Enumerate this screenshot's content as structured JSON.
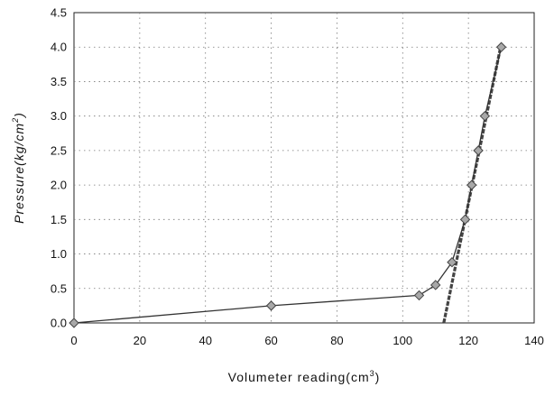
{
  "chart_data": {
    "type": "scatter",
    "xlabel": "Volumeter reading(cm",
    "xlabel_sup": "3",
    "xlabel_end": ")",
    "ylabel": "Pressure(kg/cm",
    "ylabel_sup": "2",
    "ylabel_end": ")",
    "xlim": [
      0,
      140
    ],
    "ylim": [
      0,
      4.5
    ],
    "xticks": [
      "0",
      "20",
      "40",
      "60",
      "80",
      "100",
      "120",
      "140"
    ],
    "yticks": [
      "0.0",
      "0.5",
      "1.0",
      "1.5",
      "2.0",
      "2.5",
      "3.0",
      "3.5",
      "4.0",
      "4.5"
    ],
    "grid": true,
    "series": [
      {
        "values": [
          {
            "x": 0,
            "y": 0.0
          },
          {
            "x": 60,
            "y": 0.25
          },
          {
            "x": 105,
            "y": 0.4
          },
          {
            "x": 110,
            "y": 0.55
          },
          {
            "x": 115,
            "y": 0.88
          },
          {
            "x": 119,
            "y": 1.5
          },
          {
            "x": 121,
            "y": 2.0
          },
          {
            "x": 123,
            "y": 2.5
          },
          {
            "x": 125,
            "y": 3.0
          },
          {
            "x": 130,
            "y": 4.0
          }
        ],
        "marker": "diamond",
        "marker_color": "#a8a8a8",
        "line_color": "#333333"
      }
    ],
    "trendline": {
      "x": [
        112.5,
        130
      ],
      "y": [
        0.0,
        4.05
      ],
      "color": "#444444"
    }
  }
}
